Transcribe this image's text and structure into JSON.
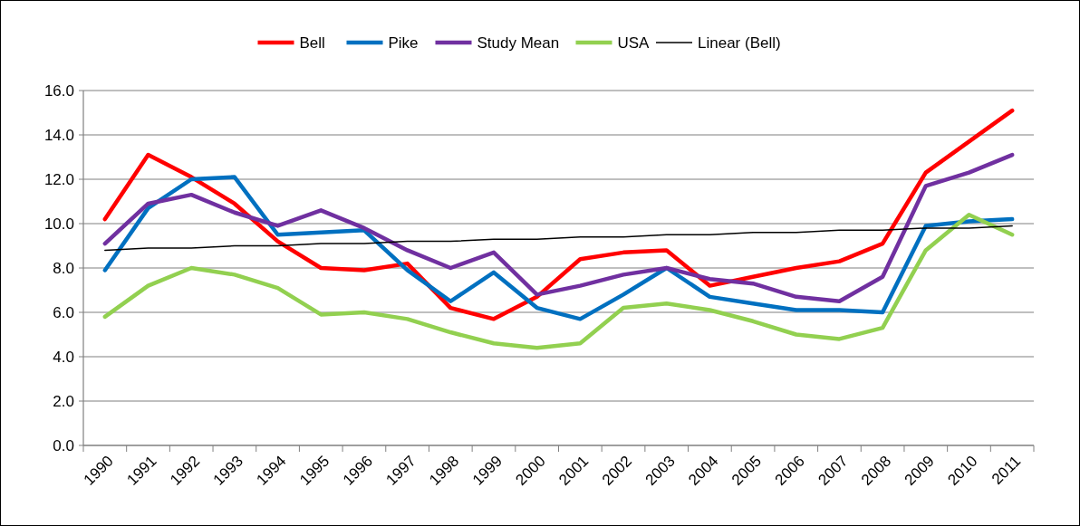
{
  "chart_data": {
    "type": "line",
    "categories": [
      "1990",
      "1991",
      "1992",
      "1993",
      "1994",
      "1995",
      "1996",
      "1997",
      "1998",
      "1999",
      "2000",
      "2001",
      "2002",
      "2003",
      "2004",
      "2005",
      "2006",
      "2007",
      "2008",
      "2009",
      "2010",
      "2011"
    ],
    "series": [
      {
        "name": "Bell",
        "color": "#ff0000",
        "values": [
          10.2,
          13.1,
          12.1,
          10.9,
          9.2,
          8.0,
          7.9,
          8.2,
          6.2,
          5.7,
          6.7,
          8.4,
          8.7,
          8.8,
          7.2,
          7.6,
          8.0,
          8.3,
          9.1,
          12.3,
          13.7,
          15.1
        ]
      },
      {
        "name": "Pike",
        "color": "#0070c0",
        "values": [
          7.9,
          10.7,
          12.0,
          12.1,
          9.5,
          9.6,
          9.7,
          7.9,
          6.5,
          7.8,
          6.2,
          5.7,
          6.8,
          8.0,
          6.7,
          6.4,
          6.1,
          6.1,
          6.0,
          9.9,
          10.1,
          10.2
        ]
      },
      {
        "name": "Study Mean",
        "color": "#7030a0",
        "values": [
          9.1,
          10.9,
          11.3,
          10.5,
          9.9,
          10.6,
          9.8,
          8.8,
          8.0,
          8.7,
          6.8,
          7.2,
          7.7,
          8.0,
          7.5,
          7.3,
          6.7,
          6.5,
          7.6,
          11.7,
          12.3,
          13.1
        ]
      },
      {
        "name": "USA",
        "color": "#92d050",
        "values": [
          5.8,
          7.2,
          8.0,
          7.7,
          7.1,
          5.9,
          6.0,
          5.7,
          5.1,
          4.6,
          4.4,
          4.6,
          6.2,
          6.4,
          6.1,
          5.6,
          5.0,
          4.8,
          5.3,
          8.8,
          10.4,
          9.5
        ]
      },
      {
        "name": "Linear (Bell)",
        "color": "#000000",
        "type": "line",
        "values": [
          8.8,
          8.9,
          8.9,
          9.0,
          9.0,
          9.1,
          9.1,
          9.2,
          9.2,
          9.3,
          9.3,
          9.4,
          9.4,
          9.5,
          9.5,
          9.6,
          9.6,
          9.7,
          9.7,
          9.8,
          9.8,
          9.9
        ]
      }
    ],
    "ylim": [
      0,
      16
    ],
    "yticks": [
      {
        "value": 0,
        "label": "0.0"
      },
      {
        "value": 2,
        "label": "2.0"
      },
      {
        "value": 4,
        "label": "4.0"
      },
      {
        "value": 6,
        "label": "6.0"
      },
      {
        "value": 8,
        "label": "8.0"
      },
      {
        "value": 10,
        "label": "10.0"
      },
      {
        "value": 12,
        "label": "12.0"
      },
      {
        "value": 14,
        "label": "14.0"
      },
      {
        "value": 16,
        "label": "16.0"
      }
    ],
    "grid": "y",
    "legend": "top",
    "marker": "none",
    "line_style": "solid"
  }
}
